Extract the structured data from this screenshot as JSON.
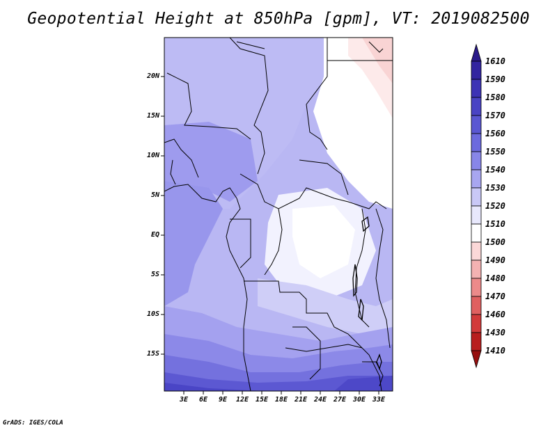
{
  "title": "Geopotential Height at 850hPa [gpm], VT: 2019082500",
  "credit": "GrADS: IGES/COLA",
  "map": {
    "y_ticks": [
      "20N",
      "15N",
      "10N",
      "5N",
      "EQ",
      "5S",
      "10S",
      "15S"
    ],
    "x_ticks": [
      "3E",
      "6E",
      "9E",
      "12E",
      "15E",
      "18E",
      "21E",
      "24E",
      "27E",
      "30E",
      "33E"
    ]
  },
  "colorbar": {
    "levels": [
      "1610",
      "1590",
      "1580",
      "1570",
      "1560",
      "1550",
      "1540",
      "1530",
      "1520",
      "1510",
      "1500",
      "1490",
      "1480",
      "1470",
      "1460",
      "1430",
      "1410"
    ],
    "colors": [
      "#2a1a8a",
      "#3325a0",
      "#3d33b5",
      "#4a44c4",
      "#5a57d2",
      "#6c6ade",
      "#8886e8",
      "#a8a6f0",
      "#c9c8f6",
      "#e8e8fc",
      "#ffffff",
      "#fbd8d8",
      "#f4b2b2",
      "#ec8a8a",
      "#e06060",
      "#d23a3a",
      "#b81e1e",
      "#961010"
    ]
  }
}
